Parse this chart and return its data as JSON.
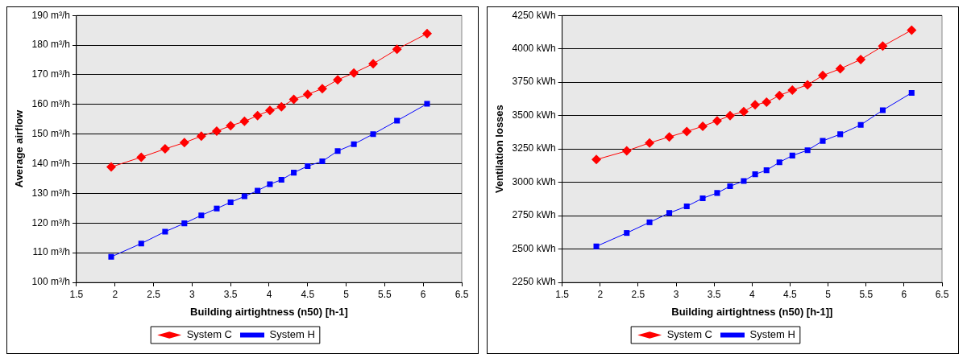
{
  "chart_data": [
    {
      "type": "line",
      "xlabel": "Building airtightness (n50) [h-1]",
      "ylabel": "Average airflow",
      "xlim": [
        1.5,
        6.5
      ],
      "xticks": [
        1.5,
        2,
        2.5,
        3,
        3.5,
        4,
        4.5,
        5,
        5.5,
        6,
        6.5
      ],
      "ylim": [
        100,
        190
      ],
      "yticks": [
        {
          "value": 100,
          "label": "100 m³/h"
        },
        {
          "value": 110,
          "label": "110 m³/h"
        },
        {
          "value": 120,
          "label": "120 m³/h"
        },
        {
          "value": 130,
          "label": "130 m³/h"
        },
        {
          "value": 140,
          "label": "140 m³/h"
        },
        {
          "value": 150,
          "label": "150 m³/h"
        },
        {
          "value": 160,
          "label": "160 m³/h"
        },
        {
          "value": 170,
          "label": "170 m³/h"
        },
        {
          "value": 180,
          "label": "180 m³/h"
        },
        {
          "value": 190,
          "label": "190 m³/h"
        }
      ],
      "grid": "y",
      "legend": "bottom",
      "x": [
        1.95,
        2.34,
        2.65,
        2.9,
        3.12,
        3.32,
        3.5,
        3.68,
        3.85,
        4.01,
        4.16,
        4.32,
        4.5,
        4.69,
        4.89,
        5.1,
        5.35,
        5.66,
        6.05
      ],
      "series": [
        {
          "name": "System C",
          "color": "#ff0000",
          "marker": "diamond",
          "values": [
            138.9,
            142.2,
            145.0,
            147.1,
            149.3,
            151.0,
            152.8,
            154.3,
            156.2,
            158.0,
            159.2,
            161.7,
            163.4,
            165.3,
            168.3,
            170.6,
            173.7,
            178.6,
            183.9
          ]
        },
        {
          "name": "System H",
          "color": "#0000ff",
          "marker": "square",
          "values": [
            108.6,
            113.1,
            117.1,
            119.9,
            122.6,
            124.9,
            127.0,
            129.0,
            130.9,
            133.1,
            134.6,
            137.0,
            139.2,
            140.8,
            144.3,
            146.6,
            150.0,
            154.5,
            160.2
          ]
        }
      ]
    },
    {
      "type": "line",
      "xlabel": "Building airtightness (n50) [h-1]]",
      "ylabel": "Ventilation losses",
      "xlim": [
        1.5,
        6.5
      ],
      "xticks": [
        1.5,
        2,
        2.5,
        3,
        3.5,
        4,
        4.5,
        5,
        5.5,
        6,
        6.5
      ],
      "ylim": [
        2250,
        4250
      ],
      "yticks": [
        {
          "value": 2250,
          "label": "2250 kWh"
        },
        {
          "value": 2500,
          "label": "2500 kWh"
        },
        {
          "value": 2750,
          "label": "2750 kWh"
        },
        {
          "value": 3000,
          "label": "3000 kWh"
        },
        {
          "value": 3250,
          "label": "3250 kWh"
        },
        {
          "value": 3500,
          "label": "3500 kWh"
        },
        {
          "value": 3750,
          "label": "3750 kWh"
        },
        {
          "value": 4000,
          "label": "4000 kWh"
        },
        {
          "value": 4250,
          "label": "4250 kWh"
        }
      ],
      "grid": "y",
      "legend": "bottom",
      "x": [
        1.95,
        2.35,
        2.65,
        2.91,
        3.14,
        3.35,
        3.54,
        3.71,
        3.89,
        4.04,
        4.19,
        4.36,
        4.53,
        4.73,
        4.93,
        5.16,
        5.43,
        5.72,
        6.1
      ],
      "series": [
        {
          "name": "System C",
          "color": "#ff0000",
          "marker": "diamond",
          "values": [
            3170,
            3235,
            3295,
            3340,
            3380,
            3420,
            3460,
            3500,
            3530,
            3580,
            3600,
            3650,
            3690,
            3730,
            3800,
            3850,
            3920,
            4020,
            4140
          ]
        },
        {
          "name": "System H",
          "color": "#0000ff",
          "marker": "square",
          "values": [
            2520,
            2620,
            2700,
            2770,
            2820,
            2880,
            2920,
            2970,
            3010,
            3060,
            3090,
            3150,
            3200,
            3240,
            3310,
            3360,
            3430,
            3540,
            3670
          ]
        }
      ]
    }
  ]
}
